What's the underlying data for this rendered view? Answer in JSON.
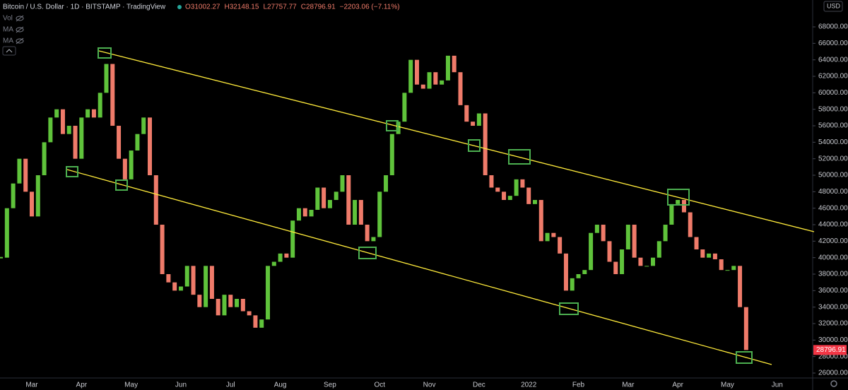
{
  "header": {
    "symbol": "Bitcoin / U.S. Dollar · 1D · BITSTAMP · TradingView",
    "ohlc": [
      "O31002.27",
      "H32148.15",
      "L27757.77",
      "C28796.91",
      "−2203.06 (−7.11%)"
    ],
    "indicators": [
      "Vol",
      "MA",
      "MA"
    ],
    "currency": "USD"
  },
  "chart_data": {
    "type": "candlestick",
    "categories": [
      null,
      null,
      null,
      null,
      null,
      "Mar",
      null,
      null,
      null,
      null,
      null,
      null,
      null,
      "Apr",
      null,
      null,
      null,
      null,
      null,
      null,
      null,
      "May",
      null,
      null,
      null,
      null,
      null,
      null,
      null,
      "Jun",
      null,
      null,
      null,
      null,
      null,
      null,
      null,
      "Jul",
      null,
      null,
      null,
      null,
      null,
      null,
      null,
      "Aug",
      null,
      null,
      null,
      null,
      null,
      null,
      null,
      "Sep",
      null,
      null,
      null,
      null,
      null,
      null,
      null,
      "Oct",
      null,
      null,
      null,
      null,
      null,
      null,
      null,
      "Nov",
      null,
      null,
      null,
      null,
      null,
      null,
      null,
      "Dec",
      null,
      null,
      null,
      null,
      null,
      null,
      null,
      "2022",
      null,
      null,
      null,
      null,
      null,
      null,
      null,
      "Feb",
      null,
      null,
      null,
      null,
      null,
      null,
      null,
      "Mar",
      null,
      null,
      null,
      null,
      null,
      null,
      null,
      "Apr",
      null,
      null,
      null,
      null,
      null,
      null,
      null,
      "May",
      null,
      null,
      null,
      null,
      null,
      null,
      null,
      "Jun",
      null,
      null,
      null,
      null,
      null
    ],
    "values": [
      40000,
      46000,
      49000,
      52000,
      48000,
      45000,
      50000,
      54000,
      57000,
      58000,
      55000,
      56000,
      52000,
      57000,
      58000,
      57000,
      60000,
      63500,
      56000,
      52000,
      49500,
      53000,
      55000,
      57000,
      50000,
      44000,
      38000,
      37000,
      36000,
      36500,
      39000,
      35500,
      34000,
      39000,
      35000,
      33000,
      35500,
      34000,
      35000,
      33500,
      33000,
      31500,
      32500,
      39000,
      39500,
      40500,
      40000,
      44500,
      46000,
      45000,
      45800,
      48500,
      46000,
      47000,
      48000,
      50000,
      44000,
      47000,
      44000,
      42000,
      42500,
      48000,
      50000,
      55000,
      56500,
      60000,
      64000,
      61000,
      60500,
      62500,
      61000,
      61500,
      64500,
      62500,
      58500,
      56500,
      56000,
      57500,
      50000,
      48500,
      48000,
      47000,
      47500,
      49500,
      48500,
      46500,
      47000,
      42000,
      43000,
      42500,
      40500,
      36000,
      37500,
      38000,
      38500,
      43000,
      44000,
      42000,
      39500,
      38000,
      41000,
      44000,
      40000,
      39000,
      39000,
      40000,
      42000,
      44000,
      46500,
      47000,
      45500,
      42500,
      41000,
      40000,
      40500,
      39800,
      38500,
      38500,
      39000,
      34000,
      28796.91,
      null,
      null,
      null,
      null,
      null,
      null,
      null,
      null,
      null,
      null
    ],
    "up_color": "#5fc33b",
    "down_color": "#ef7b6a",
    "last_price_color": "#f23645",
    "ylim": [
      25400,
      71260
    ],
    "yticks": [
      {
        "value": 26000,
        "label": "26000.00"
      },
      {
        "value": 28000,
        "label": "28000.00"
      },
      {
        "value": 30000,
        "label": "30000.00"
      },
      {
        "value": 32000,
        "label": "32000.00"
      },
      {
        "value": 34000,
        "label": "34000.00"
      },
      {
        "value": 36000,
        "label": "36000.00"
      },
      {
        "value": 38000,
        "label": "38000.00"
      },
      {
        "value": 40000,
        "label": "40000.00"
      },
      {
        "value": 42000,
        "label": "42000.00"
      },
      {
        "value": 44000,
        "label": "44000.00"
      },
      {
        "value": 46000,
        "label": "46000.00"
      },
      {
        "value": 48000,
        "label": "48000.00"
      },
      {
        "value": 50000,
        "label": "50000.00"
      },
      {
        "value": 52000,
        "label": "52000.00"
      },
      {
        "value": 54000,
        "label": "54000.00"
      },
      {
        "value": 56000,
        "label": "56000.00"
      },
      {
        "value": 58000,
        "label": "58000.00"
      },
      {
        "value": 60000,
        "label": "60000.00"
      },
      {
        "value": 62000,
        "label": "62000.00"
      },
      {
        "value": 64000,
        "label": "64000.00"
      },
      {
        "value": 66000,
        "label": "66000.00"
      },
      {
        "value": 68000,
        "label": "68000.00"
      }
    ]
  }
}
